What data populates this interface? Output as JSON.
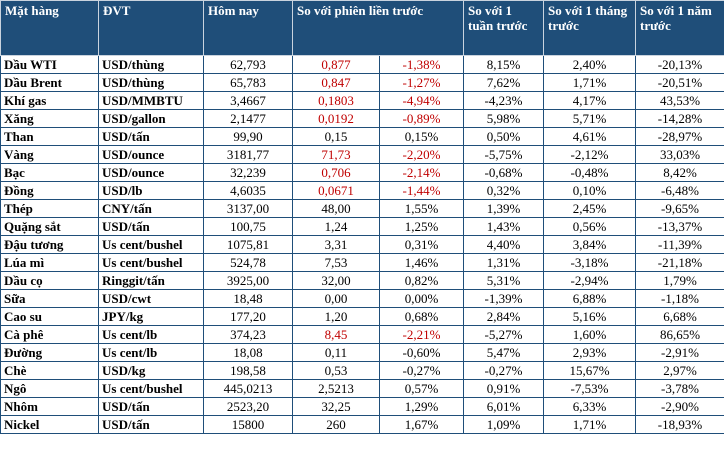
{
  "table": {
    "headers": [
      "Mặt hàng",
      "ĐVT",
      "Hôm nay",
      "So với phiên liền trước",
      "",
      "So với 1 tuần trước",
      "So với 1 tháng trước",
      "So với 1 năm trước"
    ],
    "rows": [
      {
        "name": "Dầu WTI",
        "unit": "USD/thùng",
        "today": "62,793",
        "chg": "0,877",
        "chg_pct": "-1,38%",
        "week": "8,15%",
        "month": "2,40%",
        "year": "-20,13%",
        "red": true
      },
      {
        "name": "Dầu Brent",
        "unit": "USD/thùng",
        "today": "65,783",
        "chg": "0,847",
        "chg_pct": "-1,27%",
        "week": "7,62%",
        "month": "1,71%",
        "year": "-20,51%",
        "red": true
      },
      {
        "name": "Khí gas",
        "unit": "USD/MMBTU",
        "today": "3,4667",
        "chg": "0,1803",
        "chg_pct": "-4,94%",
        "week": "-4,23%",
        "month": "4,17%",
        "year": "43,53%",
        "red": true
      },
      {
        "name": "Xăng",
        "unit": "USD/gallon",
        "today": "2,1477",
        "chg": "0,0192",
        "chg_pct": "-0,89%",
        "week": "5,98%",
        "month": "5,71%",
        "year": "-14,28%",
        "red": true
      },
      {
        "name": "Than",
        "unit": "USD/tấn",
        "today": "99,90",
        "chg": "0,15",
        "chg_pct": "0,15%",
        "week": "0,50%",
        "month": "4,61%",
        "year": "-28,97%",
        "red": false
      },
      {
        "name": "Vàng",
        "unit": "USD/ounce",
        "today": "3181,77",
        "chg": "71,73",
        "chg_pct": "-2,20%",
        "week": "-5,75%",
        "month": "-2,12%",
        "year": "33,03%",
        "red": true
      },
      {
        "name": "Bạc",
        "unit": "USD/ounce",
        "today": "32,239",
        "chg": "0,706",
        "chg_pct": "-2,14%",
        "week": "-0,68%",
        "month": "-0,48%",
        "year": "8,42%",
        "red": true
      },
      {
        "name": "Đồng",
        "unit": "USD/lb",
        "today": "4,6035",
        "chg": "0,0671",
        "chg_pct": "-1,44%",
        "week": "0,32%",
        "month": "0,10%",
        "year": "-6,48%",
        "red": true
      },
      {
        "name": "Thép",
        "unit": "CNY/tấn",
        "today": "3137,00",
        "chg": "48,00",
        "chg_pct": "1,55%",
        "week": "1,39%",
        "month": "2,45%",
        "year": "-9,65%",
        "red": false
      },
      {
        "name": "Quặng sắt",
        "unit": "USD/tấn",
        "today": "100,75",
        "chg": "1,24",
        "chg_pct": "1,25%",
        "week": "1,43%",
        "month": "0,56%",
        "year": "-13,37%",
        "red": false
      },
      {
        "name": "Đậu tương",
        "unit": "Us cent/bushel",
        "today": "1075,81",
        "chg": "3,31",
        "chg_pct": "0,31%",
        "week": "4,40%",
        "month": "3,84%",
        "year": "-11,39%",
        "red": false
      },
      {
        "name": "Lúa mì",
        "unit": "Us cent/bushel",
        "today": "524,78",
        "chg": "7,53",
        "chg_pct": "1,46%",
        "week": "1,31%",
        "month": "-3,18%",
        "year": "-21,18%",
        "red": false
      },
      {
        "name": "Dầu cọ",
        "unit": "Ringgit/tấn",
        "today": "3925,00",
        "chg": "32,00",
        "chg_pct": "0,82%",
        "week": "5,31%",
        "month": "-2,94%",
        "year": "1,79%",
        "red": false
      },
      {
        "name": "Sữa",
        "unit": "USD/cwt",
        "today": "18,48",
        "chg": "0,00",
        "chg_pct": "0,00%",
        "week": "-1,39%",
        "month": "6,88%",
        "year": "-1,18%",
        "red": false
      },
      {
        "name": "Cao su",
        "unit": "JPY/kg",
        "today": "177,20",
        "chg": "1,20",
        "chg_pct": "0,68%",
        "week": "2,84%",
        "month": "5,16%",
        "year": "6,68%",
        "red": false
      },
      {
        "name": "Cà phê",
        "unit": "Us cent/lb",
        "today": "374,23",
        "chg": "8,45",
        "chg_pct": "-2,21%",
        "week": "-5,27%",
        "month": "1,60%",
        "year": "86,65%",
        "red": true
      },
      {
        "name": "Đường",
        "unit": "Us cent/lb",
        "today": "18,08",
        "chg": "0,11",
        "chg_pct": "-0,60%",
        "week": "5,47%",
        "month": "2,93%",
        "year": "-2,91%",
        "red": false
      },
      {
        "name": "Chè",
        "unit": "USD/kg",
        "today": "198,58",
        "chg": "0,53",
        "chg_pct": "-0,27%",
        "week": "-0,27%",
        "month": "15,67%",
        "year": "2,97%",
        "red": false
      },
      {
        "name": "Ngô",
        "unit": "Us cent/bushel",
        "today": "445,0213",
        "chg": "2,5213",
        "chg_pct": "0,57%",
        "week": "0,91%",
        "month": "-7,53%",
        "year": "-3,78%",
        "red": false
      },
      {
        "name": "Nhôm",
        "unit": "USD/tấn",
        "today": "2523,20",
        "chg": "32,25",
        "chg_pct": "1,29%",
        "week": "6,01%",
        "month": "6,33%",
        "year": "-2,90%",
        "red": false
      },
      {
        "name": "Nickel",
        "unit": "USD/tấn",
        "today": "15800",
        "chg": "260",
        "chg_pct": "1,67%",
        "week": "1,09%",
        "month": "1,71%",
        "year": "-18,93%",
        "red": false
      }
    ]
  }
}
